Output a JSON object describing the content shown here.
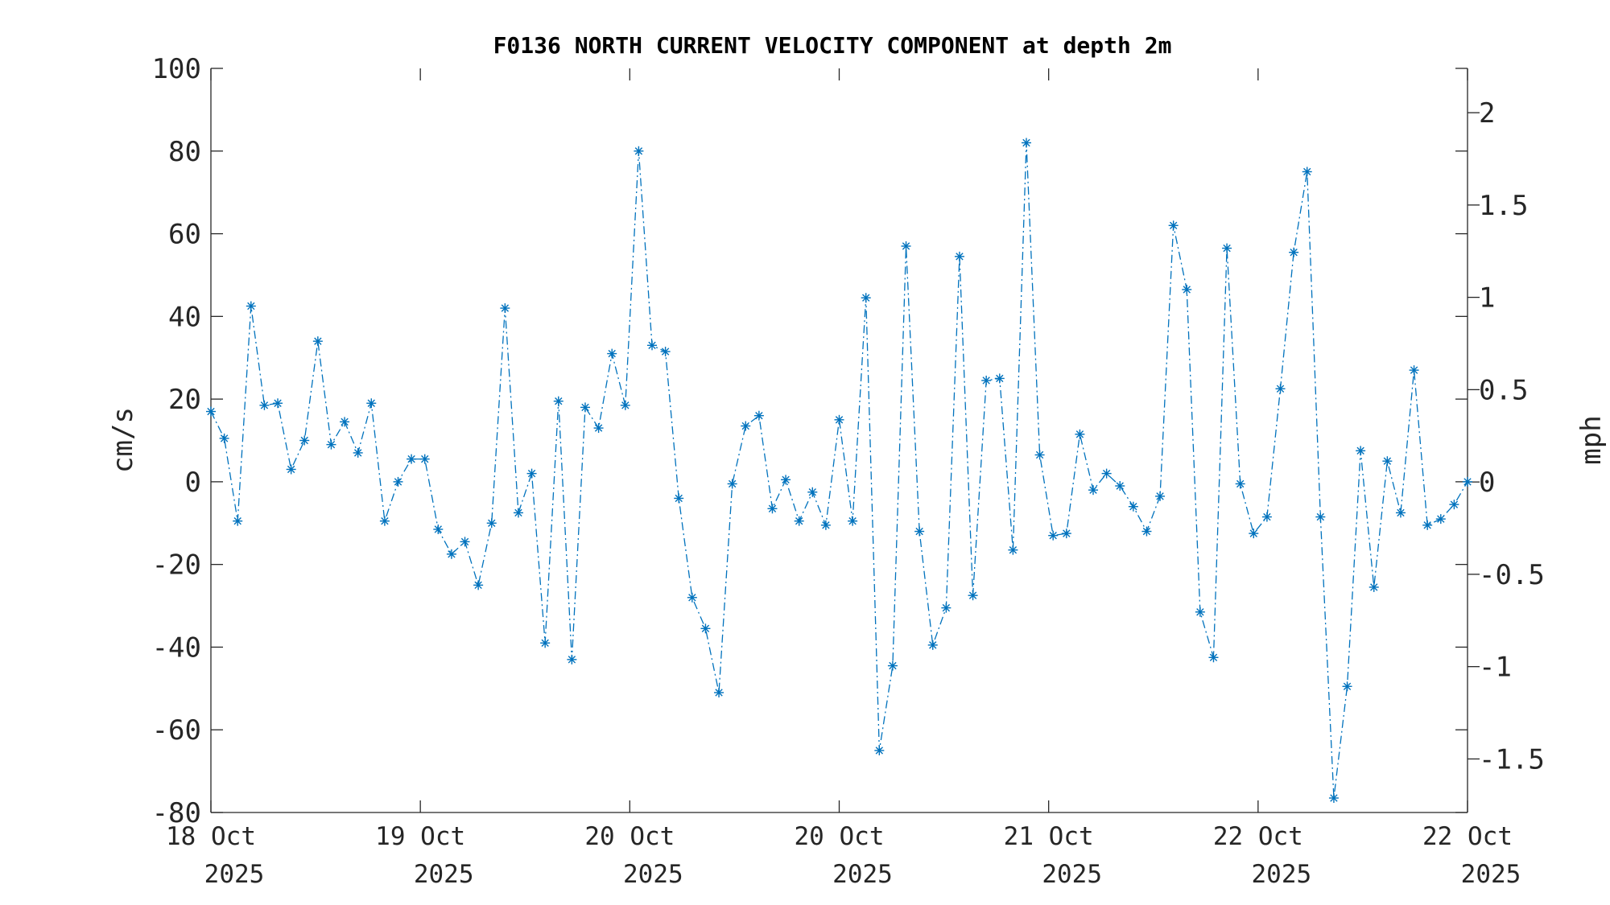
{
  "chart_data": {
    "type": "line",
    "title": "F0136 NORTH CURRENT VELOCITY COMPONENT at depth 2m",
    "ylabel": "cm/s",
    "y2label": "mph",
    "ylim": [
      -80,
      100
    ],
    "y2lim": [
      -1.79,
      2.24
    ],
    "yticks": [
      "100",
      "80",
      "60",
      "40",
      "20",
      "0",
      "-20",
      "-40",
      "-60",
      "-80"
    ],
    "y2ticks": [
      "2",
      "1.5",
      "1",
      "0.5",
      "0",
      "-0.5",
      "-1",
      "-1.5"
    ],
    "xticks": [
      {
        "day": "18 Oct",
        "year": "2025"
      },
      {
        "day": "19 Oct",
        "year": "2025"
      },
      {
        "day": "20 Oct",
        "year": "2025"
      },
      {
        "day": "20 Oct",
        "year": "2025"
      },
      {
        "day": "21 Oct",
        "year": "2025"
      },
      {
        "day": "22 Oct",
        "year": "2025"
      },
      {
        "day": "22 Oct",
        "year": "2025"
      }
    ],
    "grid": false,
    "series": [
      {
        "color": "#0072bd",
        "marker": "asterisk",
        "linestyle": "dash-dot",
        "values": [
          17,
          10.5,
          -9.5,
          42.5,
          18.5,
          19,
          3,
          10,
          34,
          9,
          14.5,
          7,
          19,
          -9.5,
          0,
          5.5,
          5.5,
          -11.5,
          -17.5,
          -14.5,
          -25,
          -10,
          42,
          -7.5,
          2,
          -39,
          19.5,
          -43,
          18,
          13,
          31,
          18.5,
          80,
          33,
          31.5,
          -4,
          -28,
          -35.5,
          -51,
          -0.5,
          13.5,
          16,
          -6.5,
          0.5,
          -9.5,
          -2.5,
          -10.5,
          15,
          -9.5,
          44.5,
          -65,
          -44.5,
          57,
          -12,
          -39.5,
          -30.5,
          54.5,
          -27.5,
          24.5,
          25,
          -16.5,
          82,
          6.5,
          -13,
          -12.5,
          11.5,
          -2,
          2,
          -1,
          -6,
          -12,
          -3.5,
          62,
          46.5,
          -31.5,
          -42.5,
          56.5,
          -0.5,
          -12.5,
          -8.5,
          22.5,
          55.5,
          75,
          -8.5,
          -76.5,
          -49.5,
          7.5,
          -25.5,
          5,
          -7.5,
          27,
          -10.5,
          -9,
          -5.5,
          0
        ]
      }
    ]
  }
}
